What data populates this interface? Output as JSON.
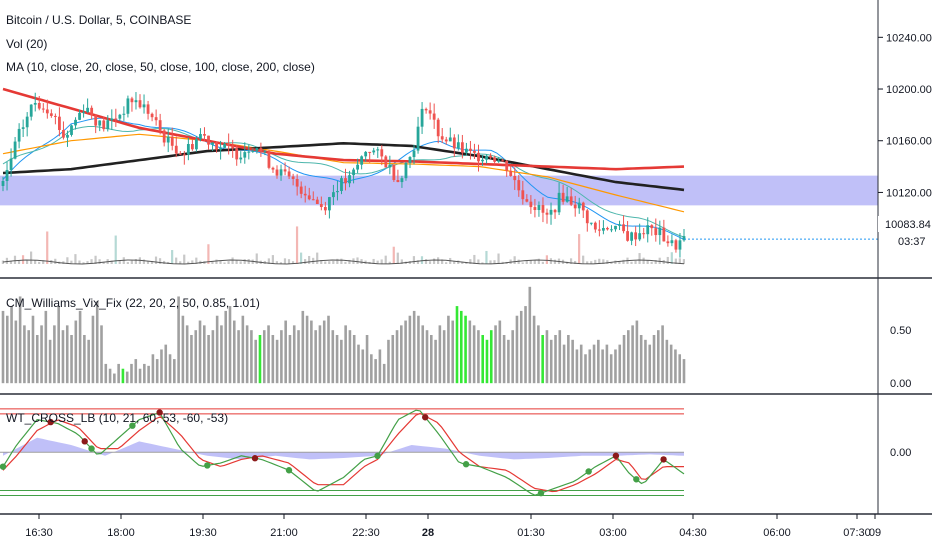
{
  "colors": {
    "up": "#26a69a",
    "down": "#ef5350",
    "ma10": "#2196f3",
    "ma20": "#4db6ac",
    "ma50": "#ff9800",
    "ma100": "#212121",
    "ma200": "#e53935",
    "zone": "#8c8cf2",
    "vol": "#c8c8c8",
    "vix_gray": "#a0a0a0",
    "vix_green": "#34e834",
    "wt1": "#43a047",
    "wt2": "#e53935",
    "wt_area": "#8c8cf2",
    "dot_bull": "#43a047",
    "dot_bear": "#8b1a1a",
    "ob_line": "#e53935",
    "os_line": "#43a047"
  },
  "header": {
    "symbol": "Bitcoin / U.S. Dollar, 5, COINBASE",
    "vol": "Vol (20)",
    "ma": "MA (10, close, 20, close, 50, close, 100, close, 200, close)",
    "vix": "CM_Williams_Vix_Fix (22, 20, 2, 50, 0.85, 1.01)",
    "wt": "WT_CROSS_LB (10, 21, 60, 53, -60, -53)"
  },
  "price_axis": {
    "ticks": [
      "10240.00",
      "10200.00",
      "10160.00",
      "10120.00"
    ],
    "last_price": "10083.84",
    "countdown": "03:37"
  },
  "vix_axis": {
    "ticks": [
      "0.50",
      "0.00"
    ]
  },
  "wt_axis": {
    "ticks": [
      "0.00"
    ]
  },
  "time_axis": {
    "ticks": [
      "16:30",
      "18:00",
      "19:30",
      "21:00",
      "22:30",
      "28",
      "01:30",
      "03:00",
      "04:30",
      "06:00",
      "07:30",
      "09"
    ]
  },
  "chart_data": [
    {
      "type": "candlestick",
      "title": "Bitcoin / U.S. Dollar, 5, COINBASE",
      "x_range": [
        "15:35",
        "04:45"
      ],
      "ylim": [
        10060,
        10265
      ],
      "highlight_zone": [
        10110,
        10133
      ],
      "price_path": [
        [
          0,
          10125
        ],
        [
          0.02,
          10160
        ],
        [
          0.045,
          10190
        ],
        [
          0.07,
          10185
        ],
        [
          0.09,
          10162
        ],
        [
          0.12,
          10188
        ],
        [
          0.145,
          10170
        ],
        [
          0.17,
          10180
        ],
        [
          0.19,
          10192
        ],
        [
          0.21,
          10185
        ],
        [
          0.24,
          10160
        ],
        [
          0.265,
          10150
        ],
        [
          0.29,
          10165
        ],
        [
          0.32,
          10155
        ],
        [
          0.345,
          10150
        ],
        [
          0.37,
          10158
        ],
        [
          0.395,
          10140
        ],
        [
          0.42,
          10130
        ],
        [
          0.445,
          10120
        ],
        [
          0.47,
          10108
        ],
        [
          0.49,
          10125
        ],
        [
          0.51,
          10130
        ],
        [
          0.535,
          10155
        ],
        [
          0.56,
          10145
        ],
        [
          0.58,
          10130
        ],
        [
          0.6,
          10150
        ],
        [
          0.62,
          10190
        ],
        [
          0.64,
          10165
        ],
        [
          0.665,
          10155
        ],
        [
          0.69,
          10148
        ],
        [
          0.715,
          10150
        ],
        [
          0.74,
          10140
        ],
        [
          0.76,
          10120
        ],
        [
          0.78,
          10110
        ],
        [
          0.8,
          10100
        ],
        [
          0.82,
          10118
        ],
        [
          0.845,
          10110
        ],
        [
          0.87,
          10090
        ],
        [
          0.895,
          10095
        ],
        [
          0.92,
          10085
        ],
        [
          0.945,
          10092
        ],
        [
          0.965,
          10088
        ],
        [
          0.985,
          10078
        ],
        [
          1.0,
          10083.84
        ]
      ],
      "moving_averages": [
        {
          "period": 10,
          "points": [
            [
              0,
              10130
            ],
            [
              0.1,
              10175
            ],
            [
              0.2,
              10175
            ],
            [
              0.3,
              10160
            ],
            [
              0.4,
              10145
            ],
            [
              0.5,
              10125
            ],
            [
              0.58,
              10145
            ],
            [
              0.64,
              10160
            ],
            [
              0.72,
              10150
            ],
            [
              0.8,
              10118
            ],
            [
              0.9,
              10098
            ],
            [
              1.0,
              10085
            ]
          ]
        },
        {
          "period": 20,
          "points": [
            [
              0,
              10140
            ],
            [
              0.1,
              10168
            ],
            [
              0.2,
              10170
            ],
            [
              0.3,
              10162
            ],
            [
              0.4,
              10150
            ],
            [
              0.5,
              10135
            ],
            [
              0.58,
              10140
            ],
            [
              0.66,
              10150
            ],
            [
              0.74,
              10145
            ],
            [
              0.82,
              10125
            ],
            [
              0.92,
              10100
            ],
            [
              1.0,
              10088
            ]
          ]
        },
        {
          "period": 50,
          "points": [
            [
              0,
              10150
            ],
            [
              0.1,
              10160
            ],
            [
              0.2,
              10165
            ],
            [
              0.3,
              10160
            ],
            [
              0.4,
              10152
            ],
            [
              0.5,
              10143
            ],
            [
              0.6,
              10142
            ],
            [
              0.7,
              10140
            ],
            [
              0.8,
              10132
            ],
            [
              0.9,
              10118
            ],
            [
              1.0,
              10105
            ]
          ]
        },
        {
          "period": 100,
          "points": [
            [
              0,
              10135
            ],
            [
              0.1,
              10138
            ],
            [
              0.2,
              10145
            ],
            [
              0.3,
              10152
            ],
            [
              0.4,
              10155
            ],
            [
              0.5,
              10158
            ],
            [
              0.6,
              10156
            ],
            [
              0.7,
              10148
            ],
            [
              0.8,
              10138
            ],
            [
              0.9,
              10128
            ],
            [
              1.0,
              10122
            ]
          ]
        },
        {
          "period": 200,
          "points": [
            [
              0,
              10200
            ],
            [
              0.1,
              10185
            ],
            [
              0.2,
              10170
            ],
            [
              0.3,
              10160
            ],
            [
              0.4,
              10150
            ],
            [
              0.5,
              10145
            ],
            [
              0.6,
              10144
            ],
            [
              0.7,
              10142
            ],
            [
              0.8,
              10140
            ],
            [
              0.9,
              10138
            ],
            [
              1.0,
              10140
            ]
          ]
        }
      ],
      "last_price": 10083.84
    },
    {
      "type": "bar",
      "title": "Vol (20)",
      "series": [
        {
          "values": [
            0.3,
            0.5,
            0.4,
            0.9,
            0.3,
            0.2,
            0.5,
            0.8,
            0.3,
            0.2,
            0.4,
            0.6,
            0.3,
            0.7,
            0.2,
            0.3,
            0.5,
            0.4,
            0.8,
            0.3,
            0.2,
            0.4,
            0.3,
            0.5,
            0.6,
            0.2,
            0.3,
            0.4,
            0.7,
            0.3,
            0.5,
            0.2,
            0.4,
            0.3,
            0.6,
            0.5,
            0.2,
            0.3,
            0.9,
            0.4,
            0.3,
            0.2,
            0.5,
            0.4,
            0.3,
            0.6,
            0.2,
            0.4,
            0.5,
            0.3,
            0.2,
            0.4,
            0.3,
            0.5,
            0.3,
            0.2,
            0.4,
            0.6,
            0.3,
            0.2
          ]
        }
      ]
    },
    {
      "type": "bar",
      "title": "CM_Williams_Vix_Fix (22, 20, 2, 50, 0.85, 1.01)",
      "ylim": [
        -0.05,
        1.05
      ],
      "values": [
        0.75,
        0.7,
        0.8,
        0.65,
        0.9,
        0.6,
        0.55,
        0.7,
        0.5,
        0.6,
        0.75,
        0.45,
        0.6,
        0.8,
        0.55,
        0.6,
        0.5,
        0.65,
        0.75,
        0.5,
        0.45,
        0.7,
        0.85,
        0.6,
        0.2,
        0.15,
        0.1,
        0.2,
        0.15,
        0.12,
        0.2,
        0.25,
        0.15,
        0.2,
        0.18,
        0.3,
        0.25,
        0.35,
        0.4,
        0.3,
        0.25,
        0.9,
        0.7,
        0.6,
        0.5,
        0.55,
        0.65,
        0.6,
        0.5,
        0.55,
        0.7,
        0.6,
        0.75,
        0.8,
        0.65,
        0.55,
        0.7,
        0.6,
        0.55,
        0.45,
        0.5,
        0.55,
        0.6,
        0.5,
        0.45,
        0.55,
        0.65,
        0.5,
        0.6,
        0.55,
        0.75,
        0.7,
        0.65,
        0.55,
        0.6,
        0.65,
        0.7,
        0.55,
        0.5,
        0.45,
        0.6,
        0.55,
        0.5,
        0.4,
        0.35,
        0.5,
        0.3,
        0.25,
        0.35,
        0.2,
        0.45,
        0.5,
        0.55,
        0.6,
        0.65,
        0.7,
        0.75,
        0.7,
        0.6,
        0.55,
        0.5,
        0.45,
        0.6,
        0.55,
        0.7,
        0.65,
        0.8,
        0.75,
        0.7,
        0.65,
        0.6,
        0.55,
        0.5,
        0.45,
        0.55,
        0.6,
        0.65,
        0.5,
        0.45,
        0.55,
        0.7,
        0.75,
        0.8,
        1.0,
        0.7,
        0.6,
        0.5,
        0.55,
        0.45,
        0.5,
        0.55,
        0.4,
        0.5,
        0.45,
        0.35,
        0.4,
        0.3,
        0.35,
        0.4,
        0.45,
        0.35,
        0.4,
        0.3,
        0.35,
        0.4,
        0.5,
        0.55,
        0.6,
        0.65,
        0.5,
        0.45,
        0.4,
        0.5,
        0.55,
        0.6,
        0.45,
        0.4,
        0.35,
        0.3,
        0.25
      ],
      "green_indices": [
        28,
        60,
        106,
        107,
        108,
        112,
        113,
        114,
        126
      ]
    },
    {
      "type": "line",
      "title": "WT_CROSS_LB (10, 21, 60, 53, -60, -53)",
      "ylim": [
        -80,
        75
      ],
      "overbought_levels": [
        60,
        53
      ],
      "oversold_levels": [
        -60,
        -53
      ],
      "wt1_points": [
        [
          0,
          -20
        ],
        [
          0.02,
          10
        ],
        [
          0.05,
          45
        ],
        [
          0.08,
          40
        ],
        [
          0.11,
          25
        ],
        [
          0.14,
          -5
        ],
        [
          0.17,
          20
        ],
        [
          0.2,
          45
        ],
        [
          0.23,
          55
        ],
        [
          0.26,
          5
        ],
        [
          0.29,
          -20
        ],
        [
          0.32,
          -15
        ],
        [
          0.35,
          -5
        ],
        [
          0.38,
          -10
        ],
        [
          0.42,
          -25
        ],
        [
          0.46,
          -55
        ],
        [
          0.5,
          -35
        ],
        [
          0.53,
          -10
        ],
        [
          0.55,
          -5
        ],
        [
          0.58,
          45
        ],
        [
          0.61,
          60
        ],
        [
          0.64,
          25
        ],
        [
          0.67,
          -15
        ],
        [
          0.7,
          -20
        ],
        [
          0.74,
          -35
        ],
        [
          0.78,
          -60
        ],
        [
          0.81,
          -50
        ],
        [
          0.84,
          -40
        ],
        [
          0.87,
          -20
        ],
        [
          0.9,
          -5
        ],
        [
          0.92,
          -30
        ],
        [
          0.94,
          -45
        ],
        [
          0.97,
          -10
        ],
        [
          1.0,
          -30
        ]
      ],
      "wt2_points": [
        [
          0,
          -25
        ],
        [
          0.02,
          -5
        ],
        [
          0.05,
          30
        ],
        [
          0.08,
          45
        ],
        [
          0.11,
          35
        ],
        [
          0.14,
          5
        ],
        [
          0.17,
          5
        ],
        [
          0.2,
          30
        ],
        [
          0.23,
          50
        ],
        [
          0.26,
          25
        ],
        [
          0.29,
          -10
        ],
        [
          0.32,
          -20
        ],
        [
          0.35,
          -10
        ],
        [
          0.38,
          -5
        ],
        [
          0.42,
          -15
        ],
        [
          0.46,
          -45
        ],
        [
          0.5,
          -45
        ],
        [
          0.53,
          -20
        ],
        [
          0.55,
          -10
        ],
        [
          0.58,
          25
        ],
        [
          0.61,
          55
        ],
        [
          0.64,
          40
        ],
        [
          0.67,
          0
        ],
        [
          0.7,
          -20
        ],
        [
          0.74,
          -25
        ],
        [
          0.78,
          -50
        ],
        [
          0.81,
          -55
        ],
        [
          0.84,
          -45
        ],
        [
          0.87,
          -30
        ],
        [
          0.9,
          -10
        ],
        [
          0.92,
          -15
        ],
        [
          0.94,
          -40
        ],
        [
          0.97,
          -20
        ],
        [
          1.0,
          -20
        ]
      ],
      "area_points": [
        [
          0,
          -5
        ],
        [
          0.05,
          20
        ],
        [
          0.1,
          10
        ],
        [
          0.15,
          -5
        ],
        [
          0.2,
          15
        ],
        [
          0.25,
          5
        ],
        [
          0.3,
          -5
        ],
        [
          0.35,
          -10
        ],
        [
          0.4,
          -5
        ],
        [
          0.45,
          -10
        ],
        [
          0.5,
          -8
        ],
        [
          0.55,
          -5
        ],
        [
          0.6,
          10
        ],
        [
          0.65,
          5
        ],
        [
          0.7,
          -5
        ],
        [
          0.75,
          -10
        ],
        [
          0.8,
          -8
        ],
        [
          0.85,
          -5
        ],
        [
          0.9,
          -5
        ],
        [
          0.95,
          -3
        ],
        [
          1.0,
          -5
        ]
      ],
      "bull_crosses": [
        0.0,
        0.13,
        0.19,
        0.3,
        0.42,
        0.55,
        0.68,
        0.79,
        0.86,
        0.93
      ],
      "bear_crosses": [
        0.07,
        0.12,
        0.23,
        0.37,
        0.62,
        0.9,
        0.97
      ]
    }
  ]
}
